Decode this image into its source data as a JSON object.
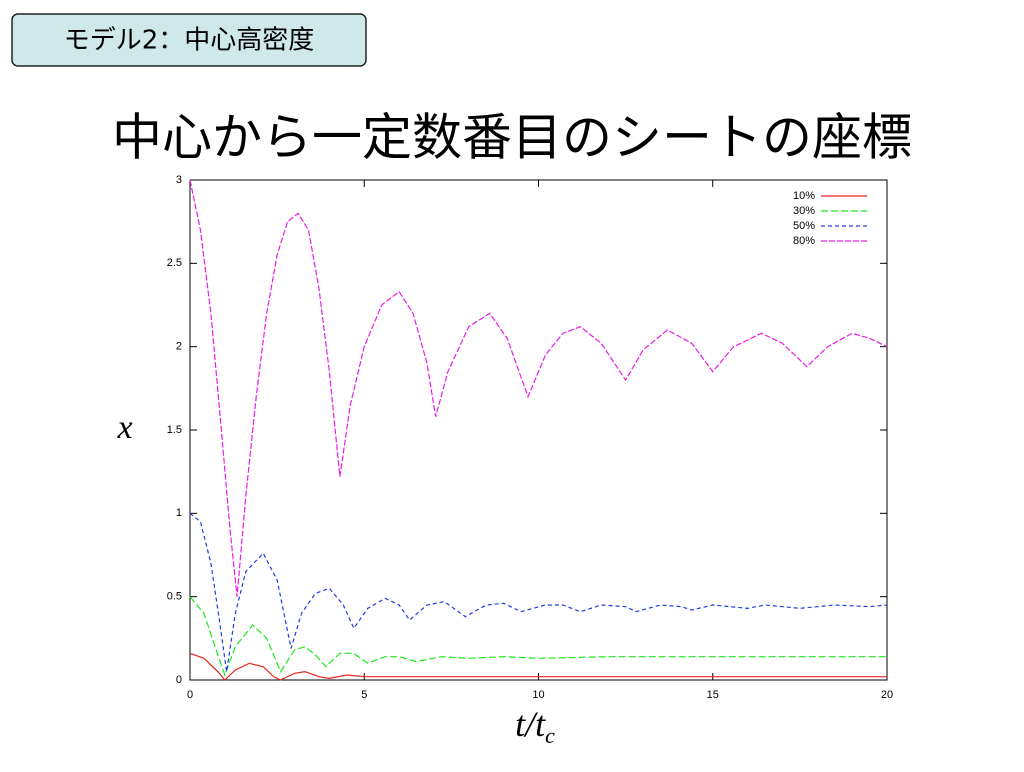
{
  "slide": {
    "tag": "モデル2：中心高密度"
  },
  "chart_data": {
    "type": "line",
    "title": "中心から一定数番目のシートの座標",
    "ylabel": "x",
    "xlabel": {
      "text": "t/t",
      "sub": "c"
    },
    "xlim": [
      0,
      20
    ],
    "ylim": [
      0,
      3
    ],
    "xticks": [
      0,
      5,
      10,
      15,
      20
    ],
    "yticks": [
      0,
      0.5,
      1,
      1.5,
      2,
      2.5,
      3
    ],
    "legend": "upper right",
    "series": [
      {
        "name": "10%",
        "color": "#e8281e",
        "dash": "none",
        "x": [
          0,
          0.4,
          0.8,
          1.0,
          1.3,
          1.7,
          2.1,
          2.4,
          2.6,
          3.0,
          3.3,
          3.7,
          4.0,
          4.5,
          5,
          6,
          8,
          10,
          12,
          14,
          16,
          18,
          20
        ],
        "values": [
          0.16,
          0.13,
          0.05,
          0.0,
          0.06,
          0.1,
          0.08,
          0.02,
          0.0,
          0.04,
          0.05,
          0.02,
          0.01,
          0.03,
          0.02,
          0.02,
          0.02,
          0.02,
          0.02,
          0.02,
          0.02,
          0.02,
          0.02
        ]
      },
      {
        "name": "30%",
        "color": "#1ee81e",
        "dash": "7,3",
        "x": [
          0,
          0.4,
          0.8,
          1.0,
          1.3,
          1.8,
          2.2,
          2.6,
          3.0,
          3.3,
          3.6,
          3.9,
          4.3,
          4.7,
          5.1,
          5.6,
          6.0,
          6.5,
          7.2,
          8,
          9,
          10,
          12,
          14,
          16,
          18,
          20
        ],
        "values": [
          0.5,
          0.4,
          0.15,
          0.03,
          0.2,
          0.33,
          0.25,
          0.05,
          0.18,
          0.2,
          0.15,
          0.08,
          0.16,
          0.16,
          0.1,
          0.14,
          0.14,
          0.11,
          0.14,
          0.13,
          0.14,
          0.13,
          0.14,
          0.14,
          0.14,
          0.14,
          0.14
        ]
      },
      {
        "name": "50%",
        "color": "#1e3ce8",
        "dash": "4,3",
        "x": [
          0,
          0.3,
          0.6,
          0.85,
          1.05,
          1.3,
          1.6,
          2.1,
          2.5,
          2.9,
          3.2,
          3.6,
          4.0,
          4.4,
          4.7,
          5.1,
          5.6,
          6.0,
          6.3,
          6.8,
          7.3,
          7.9,
          8.5,
          9.0,
          9.5,
          10.2,
          10.7,
          11.2,
          11.8,
          12.5,
          12.8,
          13.5,
          14.1,
          14.4,
          15.0,
          16.0,
          16.5,
          17.5,
          18.5,
          19.5,
          20
        ],
        "values": [
          1.0,
          0.95,
          0.7,
          0.35,
          0.05,
          0.4,
          0.65,
          0.76,
          0.6,
          0.19,
          0.4,
          0.52,
          0.55,
          0.45,
          0.31,
          0.43,
          0.49,
          0.45,
          0.36,
          0.45,
          0.47,
          0.38,
          0.45,
          0.46,
          0.41,
          0.45,
          0.45,
          0.41,
          0.45,
          0.44,
          0.41,
          0.45,
          0.44,
          0.42,
          0.45,
          0.43,
          0.45,
          0.43,
          0.45,
          0.44,
          0.45
        ]
      },
      {
        "name": "80%",
        "color": "#e81ee8",
        "dash": "6,2",
        "x": [
          0,
          0.3,
          0.6,
          0.9,
          1.15,
          1.35,
          1.6,
          1.9,
          2.2,
          2.5,
          2.8,
          3.1,
          3.4,
          3.7,
          4.0,
          4.3,
          4.6,
          5.0,
          5.5,
          6.0,
          6.4,
          6.8,
          7.05,
          7.4,
          8.0,
          8.6,
          9.1,
          9.7,
          10.2,
          10.7,
          11.2,
          11.8,
          12.5,
          13.0,
          13.7,
          14.4,
          15.0,
          15.6,
          16.4,
          17.0,
          17.7,
          18.3,
          19.0,
          19.5,
          20
        ],
        "values": [
          3.0,
          2.7,
          2.2,
          1.5,
          0.9,
          0.5,
          1.1,
          1.7,
          2.2,
          2.55,
          2.75,
          2.8,
          2.7,
          2.35,
          1.85,
          1.22,
          1.65,
          2.0,
          2.25,
          2.33,
          2.2,
          1.9,
          1.58,
          1.85,
          2.12,
          2.2,
          2.05,
          1.7,
          1.95,
          2.08,
          2.12,
          2.02,
          1.8,
          1.98,
          2.1,
          2.02,
          1.85,
          2.0,
          2.08,
          2.02,
          1.88,
          2.0,
          2.08,
          2.05,
          2.0
        ]
      }
    ]
  }
}
